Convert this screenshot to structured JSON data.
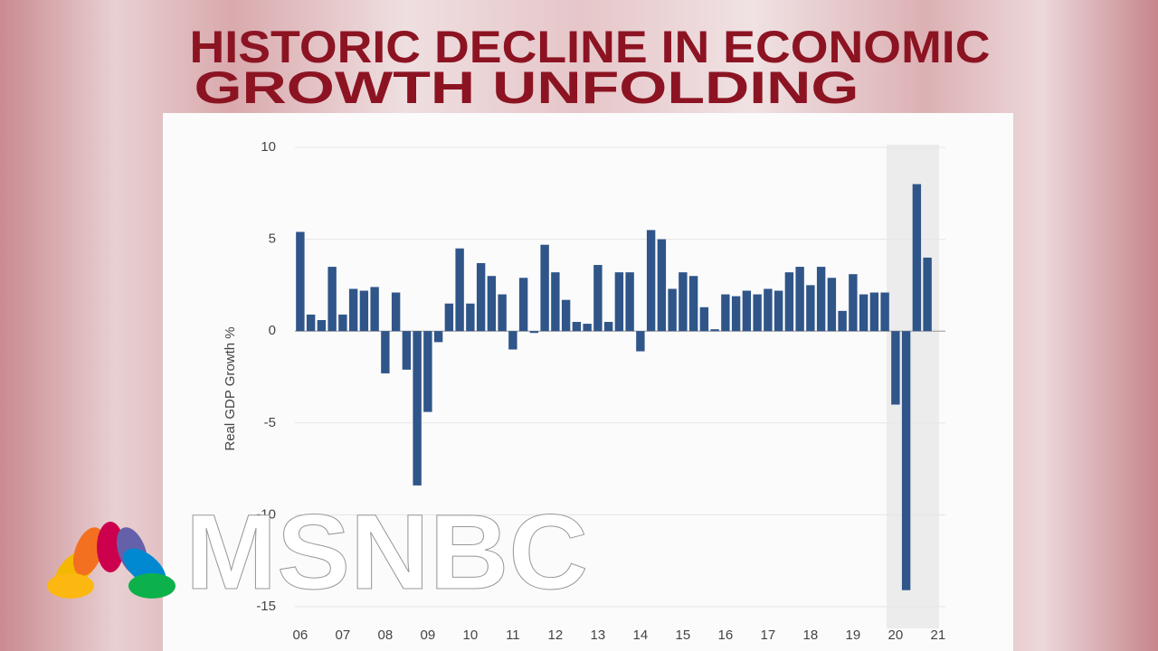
{
  "header": {
    "title_lines": [
      "HISTORIC DECLINE IN ECONOMIC",
      "GROWTH UNFOLDING"
    ]
  },
  "chart_data": {
    "type": "bar",
    "y_label": "Real GDP Growth %",
    "categories": [
      "06",
      null,
      null,
      null,
      "07",
      null,
      null,
      null,
      "08",
      null,
      null,
      null,
      "09",
      null,
      null,
      null,
      "10",
      null,
      null,
      null,
      "11",
      null,
      null,
      null,
      "12",
      null,
      null,
      null,
      "13",
      null,
      null,
      null,
      "14",
      null,
      null,
      null,
      "15",
      null,
      null,
      null,
      "16",
      null,
      null,
      null,
      "17",
      null,
      null,
      null,
      "18",
      null,
      null,
      null,
      "19",
      null,
      null,
      null,
      "20",
      null,
      null,
      null,
      "21"
    ],
    "values": [
      5.4,
      0.9,
      0.6,
      3.5,
      0.9,
      2.3,
      2.2,
      2.4,
      -2.3,
      2.1,
      -2.1,
      -8.4,
      -4.4,
      -0.6,
      1.5,
      4.5,
      1.5,
      3.7,
      3.0,
      2.0,
      -1.0,
      2.9,
      -0.1,
      4.7,
      3.2,
      1.7,
      0.5,
      0.4,
      3.6,
      0.5,
      3.2,
      3.2,
      -1.1,
      5.5,
      5.0,
      2.3,
      3.2,
      3.0,
      1.3,
      0.1,
      2.0,
      1.9,
      2.2,
      2.0,
      2.3,
      2.2,
      3.2,
      3.5,
      2.5,
      3.5,
      2.9,
      1.1,
      3.1,
      2.0,
      2.1,
      2.1,
      -4.0,
      -14.1,
      8.0,
      4.0,
      null
    ],
    "color": "#2f5589",
    "ylim": [
      -15,
      10
    ],
    "yticks": [
      -15,
      -10,
      -5,
      0,
      5,
      10
    ],
    "grid": true
  },
  "logo": {
    "text": "MSNBC"
  }
}
